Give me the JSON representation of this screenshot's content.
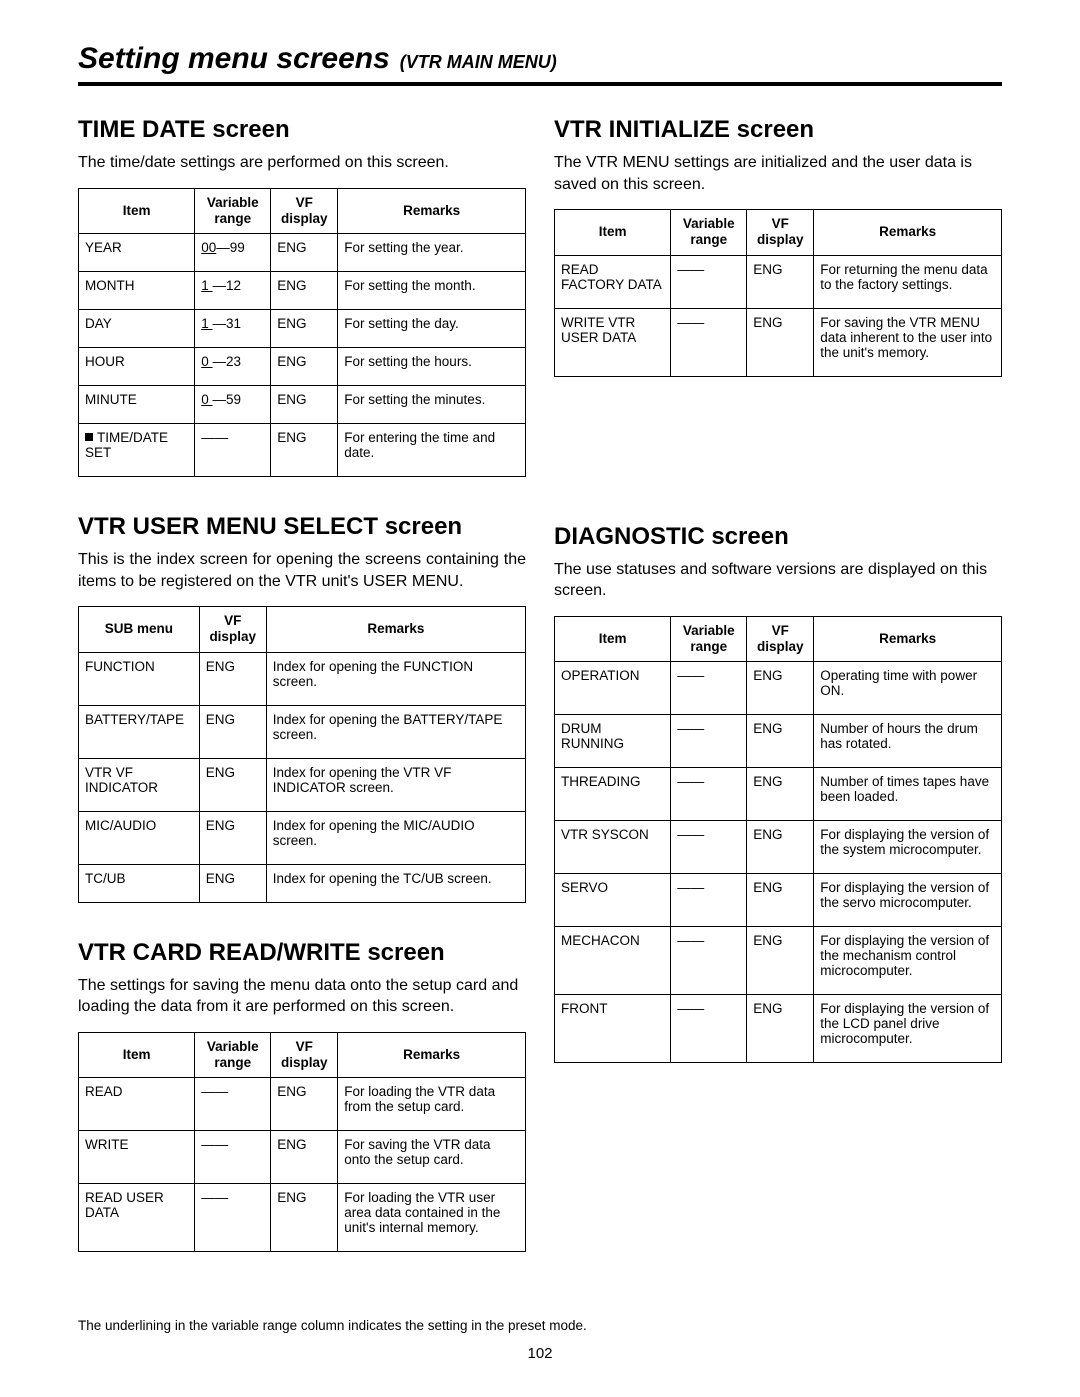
{
  "header": {
    "title": "Setting menu screens",
    "subtitle": "(VTR MAIN MENU)"
  },
  "footnote": "The underlining in the variable range column indicates the setting in the preset mode.",
  "page_number": "102",
  "sections": {
    "time_date": {
      "heading": "TIME DATE screen",
      "desc": "The time/date settings are performed on this screen.",
      "headers": {
        "item": "Item",
        "range": "Variable range",
        "vf": "VF display",
        "remarks": "Remarks"
      },
      "rows": [
        {
          "item_html": "YEAR",
          "range_html": "<span class='u'>00</span>—99",
          "vf": "ENG",
          "remarks": "For setting the year."
        },
        {
          "item_html": "MONTH",
          "range_html": "<span class='u'>1&nbsp;</span>—12",
          "vf": "ENG",
          "remarks": "For setting the month."
        },
        {
          "item_html": "DAY",
          "range_html": "<span class='u'>1&nbsp;</span>—31",
          "vf": "ENG",
          "remarks": "For setting the day."
        },
        {
          "item_html": "HOUR",
          "range_html": "<span class='u'>0&nbsp;</span>—23",
          "vf": "ENG",
          "remarks": "For setting the hours."
        },
        {
          "item_html": "MINUTE",
          "range_html": "<span class='u'>0&nbsp;</span>—59",
          "vf": "ENG",
          "remarks": "For setting the minutes."
        },
        {
          "item_html": "<span class='bullet'></span>TIME/DATE SET",
          "range_html": "——",
          "vf": "ENG",
          "remarks": "For entering the time and date."
        }
      ]
    },
    "user_menu_select": {
      "heading": "VTR USER MENU SELECT screen",
      "desc": "This is the index screen for opening the screens containing the items to be registered on the VTR unit's USER MENU.",
      "headers": {
        "sub": "SUB menu",
        "vf": "VF display",
        "remarks": "Remarks"
      },
      "rows": [
        {
          "sub": "FUNCTION",
          "vf": "ENG",
          "remarks": "Index for opening the FUNCTION screen."
        },
        {
          "sub": "BATTERY/TAPE",
          "vf": "ENG",
          "remarks": "Index for opening the BATTERY/TAPE screen."
        },
        {
          "sub": "VTR VF INDICATOR",
          "vf": "ENG",
          "remarks": "Index for opening the VTR VF INDICATOR screen."
        },
        {
          "sub": "MIC/AUDIO",
          "vf": "ENG",
          "remarks": "Index for opening the MIC/AUDIO screen."
        },
        {
          "sub": "TC/UB",
          "vf": "ENG",
          "remarks": "Index for opening the TC/UB screen."
        }
      ]
    },
    "card_rw": {
      "heading": "VTR CARD READ/WRITE screen",
      "desc": "The settings for saving the menu data onto the setup card and loading the data from it are performed on this screen.",
      "headers": {
        "item": "Item",
        "range": "Variable range",
        "vf": "VF display",
        "remarks": "Remarks"
      },
      "rows": [
        {
          "item": "READ",
          "range": "——",
          "vf": "ENG",
          "remarks": "For loading the VTR data from the setup card."
        },
        {
          "item": "WRITE",
          "range": "——",
          "vf": "ENG",
          "remarks": "For saving the VTR data onto the setup card."
        },
        {
          "item": "READ USER DATA",
          "range": "——",
          "vf": "ENG",
          "remarks": "For loading the VTR user area data contained in the unit's internal memory."
        }
      ]
    },
    "vtr_init": {
      "heading": "VTR INITIALIZE screen",
      "desc": "The VTR MENU settings are initialized and the user data is saved on this screen.",
      "headers": {
        "item": "Item",
        "range": "Variable range",
        "vf": "VF display",
        "remarks": "Remarks"
      },
      "rows": [
        {
          "item": "READ FACTORY DATA",
          "range": "——",
          "vf": "ENG",
          "remarks": "For returning the menu data to the factory settings."
        },
        {
          "item": "WRITE VTR USER DATA",
          "range": "——",
          "vf": "ENG",
          "remarks": "For saving the VTR MENU data inherent to the user into the unit's memory."
        }
      ]
    },
    "diagnostic": {
      "heading": "DIAGNOSTIC screen",
      "desc": "The use statuses and software versions are displayed on this screen.",
      "headers": {
        "item": "Item",
        "range": "Variable range",
        "vf": "VF display",
        "remarks": "Remarks"
      },
      "rows": [
        {
          "item": "OPERATION",
          "range": "——",
          "vf": "ENG",
          "remarks": "Operating time with power ON."
        },
        {
          "item": "DRUM RUNNING",
          "range": "——",
          "vf": "ENG",
          "remarks": "Number of hours the drum has rotated."
        },
        {
          "item": "THREADING",
          "range": "——",
          "vf": "ENG",
          "remarks": "Number of times tapes have been loaded."
        },
        {
          "item": "VTR SYSCON",
          "range": "——",
          "vf": "ENG",
          "remarks": "For displaying the version of the system microcomputer."
        },
        {
          "item": "SERVO",
          "range": "——",
          "vf": "ENG",
          "remarks": "For displaying the version of the servo microcomputer."
        },
        {
          "item": "MECHACON",
          "range": "——",
          "vf": "ENG",
          "remarks": "For displaying the version of the mechanism control microcomputer."
        },
        {
          "item": "FRONT",
          "range": "——",
          "vf": "ENG",
          "remarks": "For displaying the version of the LCD panel drive microcomputer."
        }
      ]
    }
  }
}
